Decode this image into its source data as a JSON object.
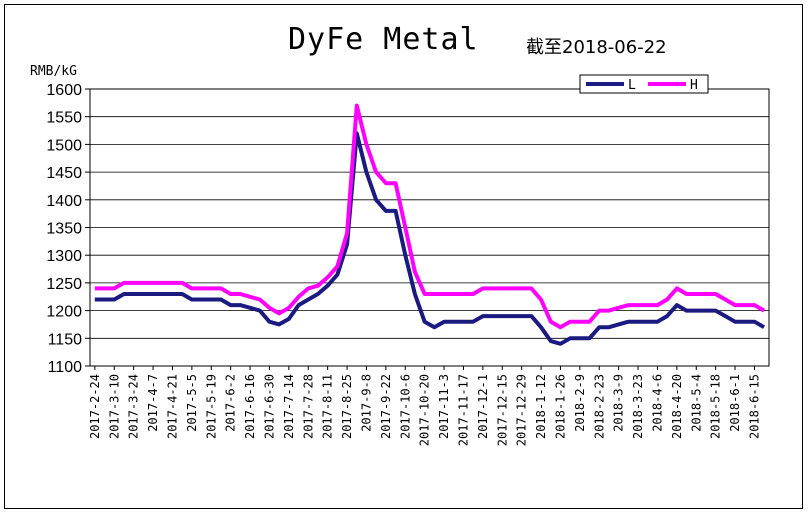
{
  "chart_data": {
    "type": "line",
    "title": "DyFe Metal",
    "subtitle": "截至2018-06-22",
    "ylabel": "RMB/kG",
    "ylim": [
      1100,
      1600
    ],
    "yticks": [
      1100,
      1150,
      1200,
      1250,
      1300,
      1350,
      1400,
      1450,
      1500,
      1550,
      1600
    ],
    "grid": true,
    "legend_position": "top-right",
    "x_tick_labels": [
      "2017-2-24",
      "2017-3-10",
      "2017-3-24",
      "2017-4-7",
      "2017-4-21",
      "2017-5-5",
      "2017-5-19",
      "2017-6-2",
      "2017-6-16",
      "2017-6-30",
      "2017-7-14",
      "2017-7-28",
      "2017-8-11",
      "2017-8-25",
      "2017-9-8",
      "2017-9-22",
      "2017-10-6",
      "2017-10-20",
      "2017-11-3",
      "2017-11-17",
      "2017-12-1",
      "2017-12-15",
      "2017-12-29",
      "2018-1-12",
      "2018-1-26",
      "2018-2-9",
      "2018-2-23",
      "2018-3-9",
      "2018-3-23",
      "2018-4-6",
      "2018-4-20",
      "2018-5-4",
      "2018-5-18",
      "2018-6-1",
      "2018-6-15"
    ],
    "x": [
      0,
      1,
      2,
      3,
      4,
      5,
      6,
      7,
      8,
      9,
      10,
      11,
      12,
      13,
      14,
      15,
      16,
      17,
      18,
      19,
      20,
      21,
      22,
      23,
      24,
      25,
      26,
      27,
      28,
      29,
      30,
      31,
      32,
      33,
      34,
      35,
      36,
      37,
      38,
      39,
      40,
      41,
      42,
      43,
      44,
      45,
      46,
      47,
      48,
      49,
      50,
      51,
      52,
      53,
      54,
      55,
      56,
      57,
      58,
      59,
      60,
      61,
      62,
      63,
      64,
      65,
      66,
      67,
      68,
      69
    ],
    "series": [
      {
        "name": "L",
        "color": "#1a1a80",
        "values": [
          1220,
          1220,
          1220,
          1230,
          1230,
          1230,
          1230,
          1230,
          1230,
          1230,
          1220,
          1220,
          1220,
          1220,
          1210,
          1210,
          1205,
          1200,
          1180,
          1175,
          1185,
          1210,
          1220,
          1230,
          1245,
          1265,
          1320,
          1520,
          1450,
          1400,
          1380,
          1380,
          1300,
          1230,
          1180,
          1170,
          1180,
          1180,
          1180,
          1180,
          1190,
          1190,
          1190,
          1190,
          1190,
          1190,
          1170,
          1145,
          1140,
          1150,
          1150,
          1150,
          1170,
          1170,
          1175,
          1180,
          1180,
          1180,
          1180,
          1190,
          1210,
          1200,
          1200,
          1200,
          1200,
          1190,
          1180,
          1180,
          1180,
          1170
        ]
      },
      {
        "name": "H",
        "color": "#ff00ff",
        "values": [
          1240,
          1240,
          1240,
          1250,
          1250,
          1250,
          1250,
          1250,
          1250,
          1250,
          1240,
          1240,
          1240,
          1240,
          1230,
          1230,
          1225,
          1220,
          1205,
          1195,
          1205,
          1225,
          1240,
          1245,
          1260,
          1280,
          1340,
          1570,
          1500,
          1450,
          1430,
          1430,
          1350,
          1270,
          1230,
          1230,
          1230,
          1230,
          1230,
          1230,
          1240,
          1240,
          1240,
          1240,
          1240,
          1240,
          1220,
          1180,
          1170,
          1180,
          1180,
          1180,
          1200,
          1200,
          1205,
          1210,
          1210,
          1210,
          1210,
          1220,
          1240,
          1230,
          1230,
          1230,
          1230,
          1220,
          1210,
          1210,
          1210,
          1200
        ]
      }
    ]
  }
}
